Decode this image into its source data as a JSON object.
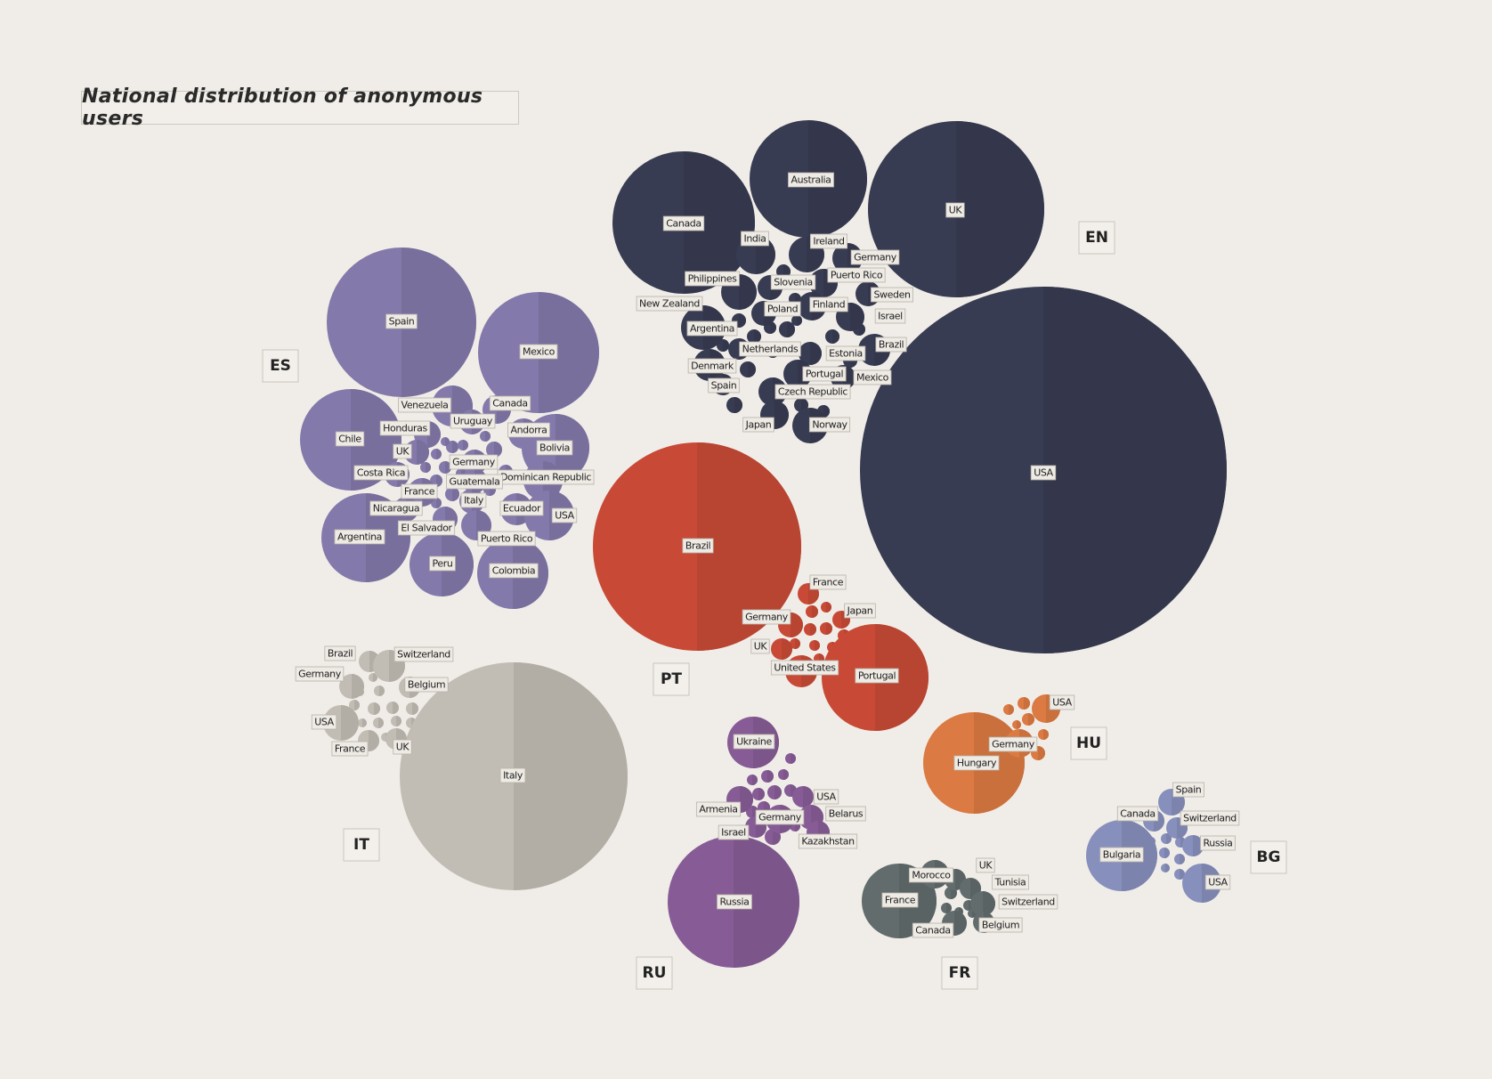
{
  "title": "National distribution of anonymous users",
  "chart_data": {
    "type": "packed-bubble",
    "groups": [
      {
        "code": "EN",
        "color": "#383c52",
        "labels": [
          "USA",
          "UK",
          "Canada",
          "Australia",
          "India",
          "Ireland",
          "Germany",
          "Philippines",
          "Puerto Rico",
          "Slovenia",
          "Sweden",
          "New Zealand",
          "Poland",
          "Finland",
          "Israel",
          "Argentina",
          "Brazil",
          "Netherlands",
          "Estonia",
          "Denmark",
          "Portugal",
          "Mexico",
          "Spain",
          "Czech Republic",
          "Japan",
          "Norway"
        ]
      },
      {
        "code": "ES",
        "color": "#8479ab",
        "labels": [
          "Spain",
          "Mexico",
          "Venezuela",
          "Canada",
          "Chile",
          "Uruguay",
          "Honduras",
          "Andorra",
          "UK",
          "Bolivia",
          "Germany",
          "Costa Rica",
          "Dominican Republic",
          "Guatemala",
          "France",
          "Italy",
          "Ecuador",
          "Nicaragua",
          "USA",
          "El Salvador",
          "Argentina",
          "Puerto Rico",
          "Peru",
          "Colombia"
        ]
      },
      {
        "code": "PT",
        "color": "#c84a36",
        "labels": [
          "Brazil",
          "France",
          "Japan",
          "Germany",
          "UK",
          "United States",
          "Portugal"
        ]
      },
      {
        "code": "IT",
        "color": "#c2bdb4",
        "labels": [
          "Italy",
          "Brazil",
          "Switzerland",
          "Germany",
          "Belgium",
          "USA",
          "France",
          "UK"
        ]
      },
      {
        "code": "RU",
        "color": "#875c96",
        "labels": [
          "Russia",
          "Ukraine",
          "USA",
          "Armenia",
          "Belarus",
          "Germany",
          "Israel",
          "Kazakhstan"
        ]
      },
      {
        "code": "HU",
        "color": "#db7a42",
        "labels": [
          "Hungary",
          "USA",
          "Germany"
        ]
      },
      {
        "code": "FR",
        "color": "#626c6c",
        "labels": [
          "France",
          "Morocco",
          "UK",
          "Tunisia",
          "Switzerland",
          "Canada",
          "Belgium"
        ]
      },
      {
        "code": "BG",
        "color": "#8790bc",
        "labels": [
          "Bulgaria",
          "Spain",
          "Canada",
          "Switzerland",
          "Russia",
          "USA"
        ]
      }
    ]
  }
}
